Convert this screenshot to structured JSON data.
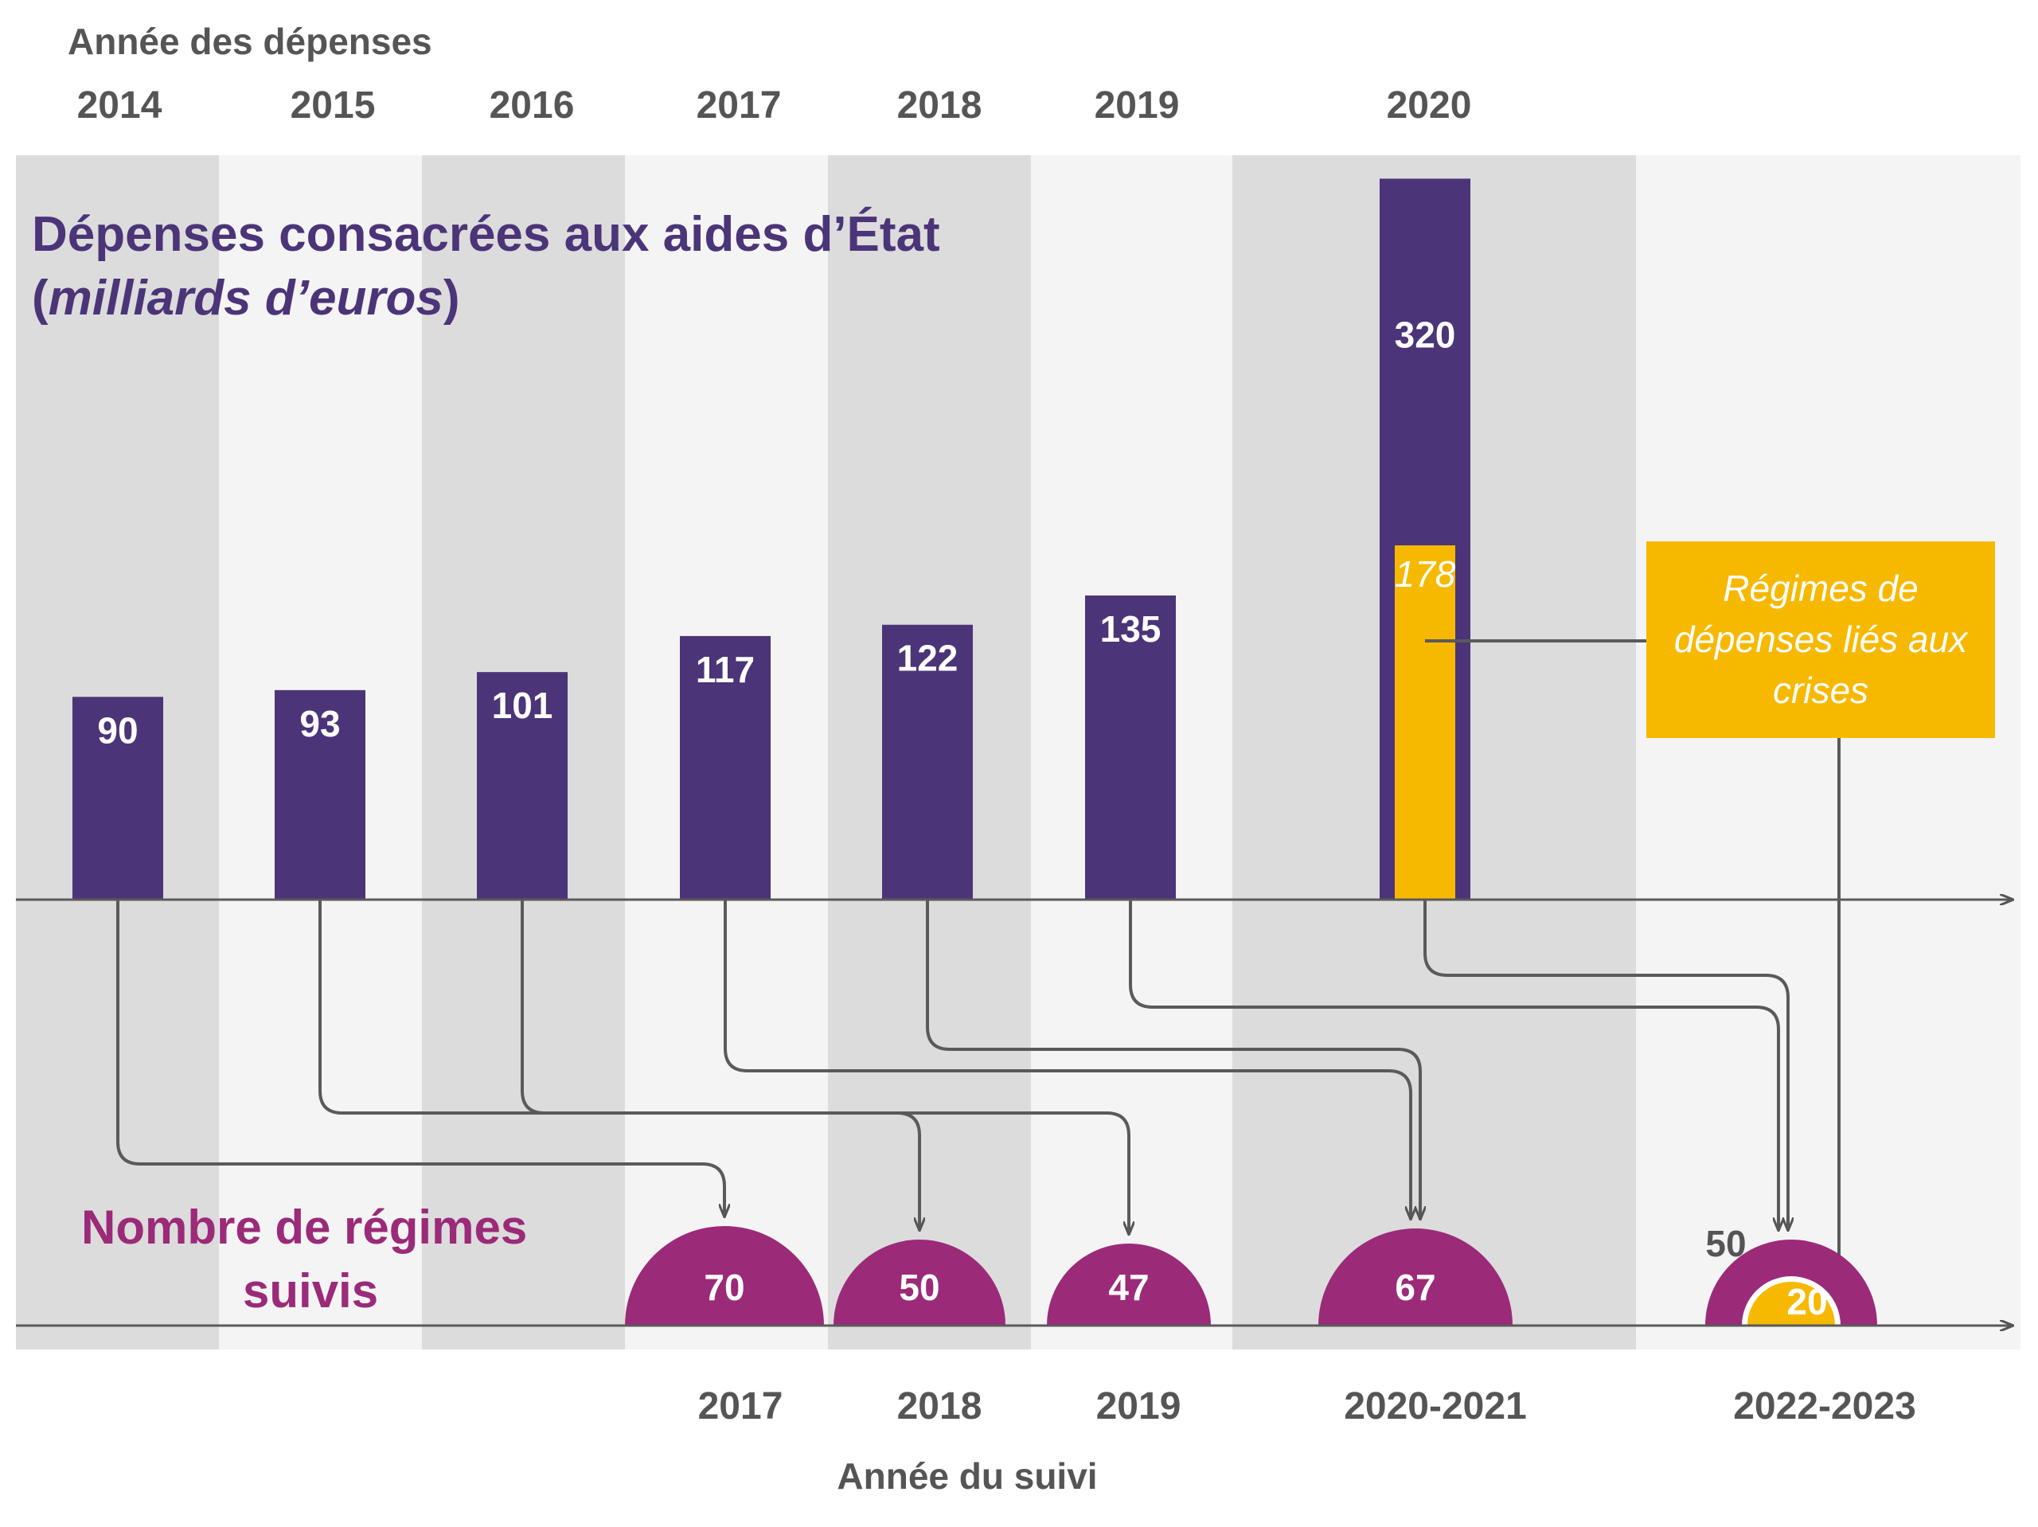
{
  "chart_data": {
    "type": "bar",
    "top_axis_title": "Année des dépenses",
    "bottom_axis_title": "Année du suivi",
    "spending_title_line1": "Dépenses consacrées aux aides d’État",
    "spending_title_line2_open": "(",
    "spending_title_line2_italic": "milliards d’euros",
    "spending_title_line2_close": ")",
    "count_title_line1": "Nombre de régimes",
    "count_title_line2": "suivis",
    "spending_years": [
      "2014",
      "2015",
      "2016",
      "2017",
      "2018",
      "2019",
      "2020"
    ],
    "spending_values": [
      90,
      93,
      101,
      117,
      122,
      135,
      320
    ],
    "spending_labels": [
      "90",
      "93",
      "101",
      "117",
      "122",
      "135",
      "320"
    ],
    "crisis_value_2020": 178,
    "crisis_label": "178",
    "callout_lines": [
      "Régimes de",
      "dépenses liés aux",
      "crises"
    ],
    "monitoring_years": [
      "2017",
      "2018",
      "2019",
      "2020-2021",
      "2022-2023"
    ],
    "monitoring_counts": [
      70,
      50,
      47,
      67,
      50
    ],
    "monitoring_labels": [
      "70",
      "50",
      "47",
      "67",
      ""
    ],
    "monitoring_outer_label_2022_2023": "50",
    "crisis_schemes_2022_2023": 20,
    "crisis_schemes_label": "20",
    "flows": [
      {
        "from": "2014",
        "to": "2017"
      },
      {
        "from": "2015",
        "to": "2018"
      },
      {
        "from": "2016",
        "to": "2019"
      },
      {
        "from": "2017",
        "to": "2020-2021"
      },
      {
        "from": "2018",
        "to": "2020-2021"
      },
      {
        "from": "2019",
        "to": "2022-2023"
      },
      {
        "from": "2020",
        "to": "2022-2023"
      }
    ],
    "colors": {
      "spending": "#4b3478",
      "crisis": "#f7b800",
      "count": "#9b2a79",
      "band_dark": "#dcdcdc",
      "band_light": "#f4f4f4",
      "connector": "#5a5a5a"
    }
  }
}
